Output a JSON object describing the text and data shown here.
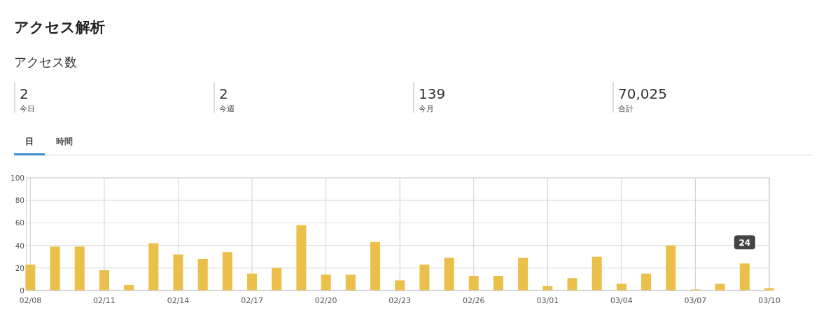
{
  "chart_data": {
    "type": "bar",
    "title": "アクセス解析",
    "subtitle": "アクセス数",
    "annotations": [
      "2",
      "今日",
      "2",
      "今週",
      "139",
      "今月",
      "70,025",
      "合計",
      "日",
      "時間"
    ],
    "categories": [
      "02/08",
      null,
      null,
      "02/11",
      null,
      null,
      "02/14",
      null,
      null,
      "02/17",
      null,
      null,
      "02/20",
      null,
      null,
      "02/23",
      null,
      null,
      "02/26",
      null,
      null,
      "03/01",
      null,
      null,
      "03/04",
      null,
      null,
      "03/07",
      null,
      null,
      "03/10"
    ],
    "values": [
      23,
      39,
      39,
      18,
      5,
      42,
      32,
      28,
      34,
      15,
      20,
      58,
      14,
      14,
      43,
      9,
      23,
      29,
      13,
      13,
      29,
      4,
      11,
      30,
      6,
      15,
      40,
      1,
      6,
      24,
      2
    ],
    "value_labels": [
      null,
      null,
      null,
      null,
      null,
      null,
      null,
      null,
      null,
      null,
      null,
      null,
      null,
      null,
      null,
      null,
      null,
      null,
      null,
      null,
      null,
      null,
      null,
      null,
      null,
      null,
      null,
      null,
      null,
      "24",
      null
    ],
    "color": "#ebc04a",
    "ylim": [
      0,
      100
    ],
    "yticks": [
      0,
      20,
      40,
      60,
      80,
      100
    ],
    "grid": true
  }
}
